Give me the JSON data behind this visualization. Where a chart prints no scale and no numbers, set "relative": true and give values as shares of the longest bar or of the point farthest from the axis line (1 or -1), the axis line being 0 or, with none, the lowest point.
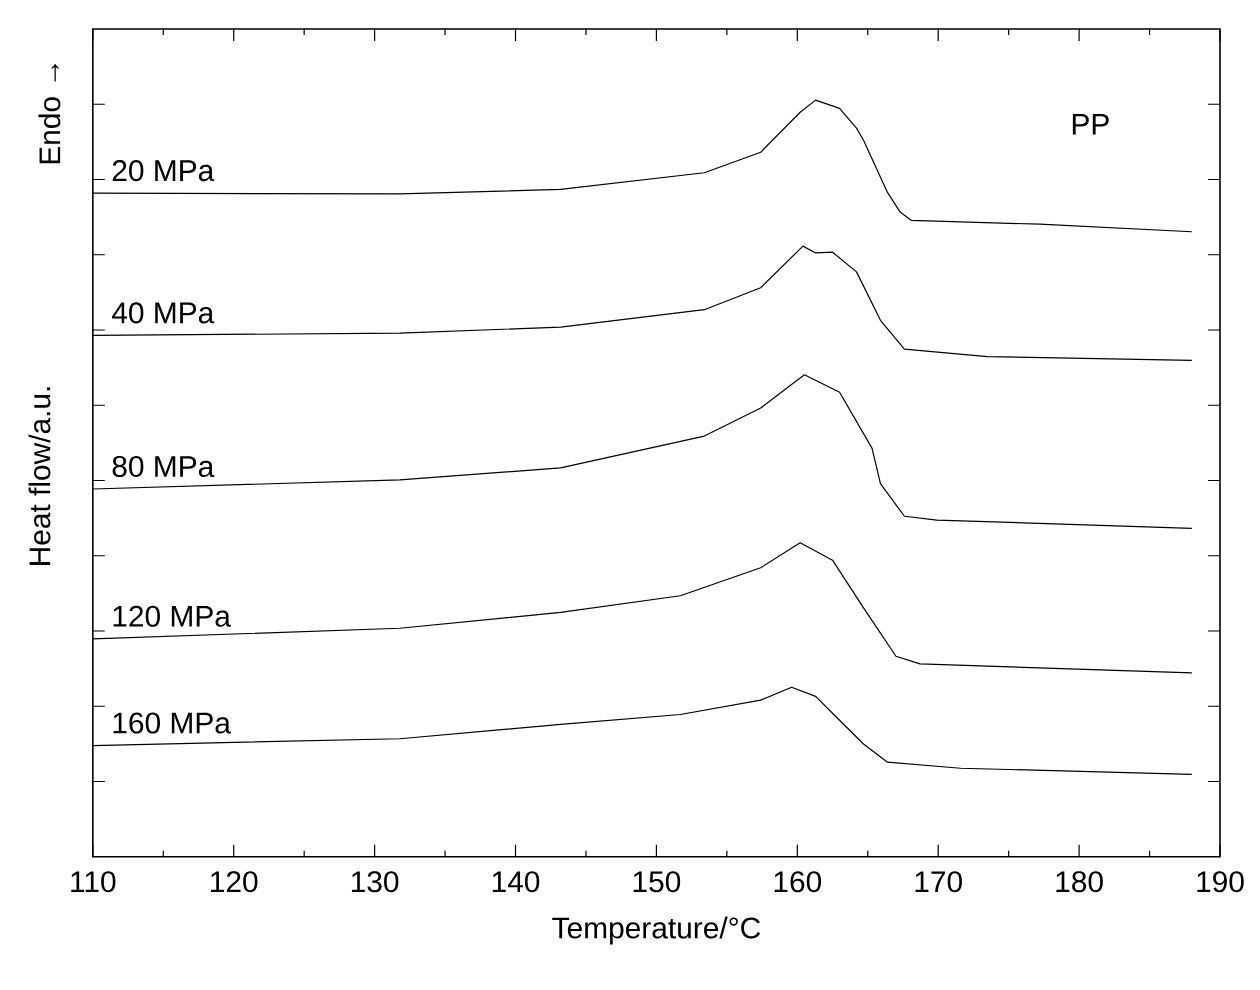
{
  "chart_data": {
    "type": "line",
    "relative": true,
    "xlabel": "Temperature/°C",
    "ylabel": "Heat flow/a.u.",
    "annotations": [
      "Endo →",
      "PP"
    ],
    "legend": "left",
    "xlim": [
      110,
      190
    ],
    "xticks": [
      110,
      120,
      130,
      140,
      150,
      160,
      170,
      180,
      190
    ],
    "series": [
      {
        "name": "20 MPa",
        "color": "#000000",
        "x": [
          110,
          131.8,
          143.2,
          153.4,
          157.4,
          160.2,
          161.3,
          163.0,
          164.2,
          164.7,
          166.4,
          167.3,
          168.1,
          177.2,
          188.0
        ],
        "values": [
          0.877,
          0.876,
          0.882,
          0.904,
          0.931,
          0.984,
          1.0,
          0.989,
          0.963,
          0.947,
          0.878,
          0.852,
          0.841,
          0.836,
          0.826
        ]
      },
      {
        "name": "40 MPa",
        "color": "#000000",
        "x": [
          110,
          131.8,
          143.2,
          153.4,
          157.4,
          160.4,
          161.3,
          162.5,
          164.2,
          165.9,
          167.6,
          173.5,
          188.0
        ],
        "values": [
          0.689,
          0.692,
          0.7,
          0.723,
          0.752,
          0.807,
          0.798,
          0.799,
          0.773,
          0.709,
          0.671,
          0.661,
          0.656
        ]
      },
      {
        "name": "80 MPa",
        "color": "#000000",
        "x": [
          110,
          131.8,
          143.2,
          153.4,
          157.4,
          160.5,
          163.0,
          165.3,
          165.9,
          167.6,
          169.9,
          188.0
        ],
        "values": [
          0.486,
          0.498,
          0.514,
          0.556,
          0.593,
          0.637,
          0.614,
          0.54,
          0.493,
          0.45,
          0.445,
          0.434
        ]
      },
      {
        "name": "120 MPa",
        "color": "#000000",
        "x": [
          110,
          131.8,
          143.2,
          151.7,
          157.4,
          160.2,
          162.5,
          164.7,
          167.0,
          168.7,
          188.0
        ],
        "values": [
          0.288,
          0.302,
          0.323,
          0.345,
          0.382,
          0.415,
          0.392,
          0.329,
          0.265,
          0.255,
          0.243
        ]
      },
      {
        "name": "160 MPa",
        "color": "#000000",
        "x": [
          110,
          131.8,
          143.2,
          151.7,
          157.4,
          159.6,
          161.3,
          162.8,
          164.7,
          166.4,
          171.6,
          188.0
        ],
        "values": [
          0.147,
          0.156,
          0.175,
          0.188,
          0.207,
          0.224,
          0.212,
          0.184,
          0.149,
          0.125,
          0.117,
          0.109
        ]
      }
    ]
  }
}
